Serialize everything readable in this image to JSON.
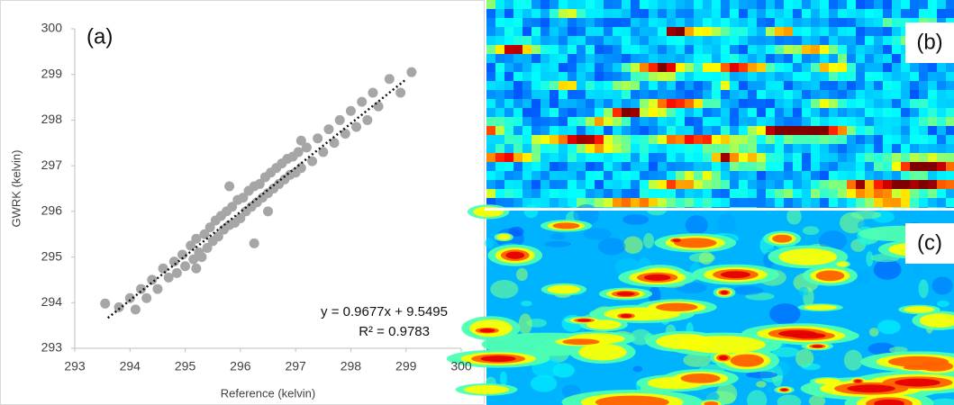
{
  "chart_data": {
    "type": "scatter",
    "title": "(a)",
    "xlabel": "Reference (kelvin)",
    "ylabel": "GWRK (kelvin)",
    "xlim": [
      293,
      300
    ],
    "ylim": [
      293,
      300
    ],
    "xticks": [
      293,
      294,
      295,
      296,
      297,
      298,
      299,
      300
    ],
    "yticks": [
      293,
      294,
      295,
      296,
      297,
      298,
      299,
      300
    ],
    "color": "#a6a6a6",
    "x": [
      293.55,
      293.8,
      294.0,
      294.1,
      294.2,
      294.3,
      294.4,
      294.5,
      294.6,
      294.7,
      294.8,
      294.85,
      294.95,
      295.0,
      295.1,
      295.15,
      295.2,
      295.25,
      295.3,
      295.35,
      295.4,
      295.45,
      295.5,
      295.55,
      295.6,
      295.65,
      295.7,
      295.75,
      295.8,
      295.85,
      295.9,
      295.95,
      296.0,
      296.05,
      296.1,
      296.15,
      296.2,
      296.25,
      296.3,
      296.35,
      296.4,
      296.45,
      296.5,
      296.55,
      296.6,
      296.65,
      296.7,
      296.75,
      296.8,
      296.85,
      296.9,
      296.95,
      297.0,
      297.05,
      297.1,
      297.2,
      297.3,
      297.4,
      297.5,
      297.6,
      297.7,
      297.8,
      297.9,
      298.0,
      298.1,
      298.2,
      298.3,
      298.4,
      298.5,
      298.7,
      298.9,
      299.1,
      295.2,
      296.25,
      296.5,
      295.8,
      297.1
    ],
    "values": [
      293.98,
      293.9,
      294.1,
      293.85,
      294.3,
      294.1,
      294.5,
      294.3,
      294.75,
      294.55,
      294.9,
      294.65,
      295.05,
      294.8,
      295.25,
      294.95,
      295.4,
      295.1,
      295.0,
      295.5,
      295.2,
      295.65,
      295.35,
      295.8,
      295.45,
      295.9,
      295.6,
      296.0,
      295.7,
      296.1,
      295.75,
      296.25,
      295.85,
      296.3,
      296.0,
      296.45,
      296.1,
      296.55,
      296.2,
      296.6,
      296.3,
      296.75,
      296.4,
      296.85,
      296.5,
      296.95,
      296.6,
      297.05,
      296.7,
      297.15,
      296.8,
      297.2,
      296.85,
      297.3,
      296.95,
      297.4,
      297.1,
      297.6,
      297.3,
      297.8,
      297.5,
      298.0,
      297.7,
      298.2,
      297.85,
      298.4,
      298.0,
      298.6,
      298.3,
      298.9,
      298.6,
      299.05,
      294.75,
      295.3,
      296.0,
      296.55,
      297.55
    ],
    "trendline": {
      "slope": 0.9677,
      "intercept": 9.5495,
      "xlim": [
        293.6,
        299.0
      ]
    },
    "annotations": [
      "y = 0.9677x + 9.5495",
      "R² = 0.9783"
    ]
  },
  "images": [
    {
      "label": "(b)"
    },
    {
      "label": "(c)"
    }
  ]
}
